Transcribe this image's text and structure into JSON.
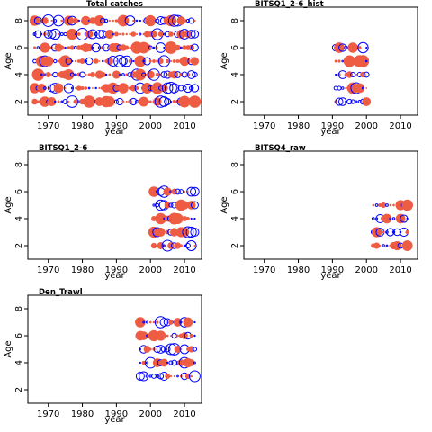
{
  "colors": {
    "positive": "#ee5c44",
    "negative": "#0000ff",
    "frame": "#000000"
  },
  "chart_data": [
    {
      "type": "scatter",
      "title": "Total catches",
      "xlabel": "year",
      "ylabel": "Age",
      "xlim": [
        1964,
        2015
      ],
      "ylim": [
        1,
        9
      ],
      "xticks": [
        1970,
        1980,
        1990,
        2000,
        2010
      ],
      "yticks": [
        2,
        4,
        6,
        8
      ],
      "years": [
        1966,
        2013
      ],
      "ages": [
        2,
        3,
        4,
        5,
        6,
        7,
        8
      ],
      "encoding": "bubble size = residual magnitude; filled red = positive, open blue = negative"
    },
    {
      "type": "scatter",
      "title": "BITSQ1_2-6_hist",
      "xlabel": "year",
      "ylabel": "Age",
      "xlim": [
        1964,
        2015
      ],
      "ylim": [
        1,
        9
      ],
      "xticks": [
        1970,
        1980,
        1990,
        2000,
        2010
      ],
      "yticks": [
        2,
        4,
        6,
        8
      ],
      "years": [
        1991,
        2000
      ],
      "ages": [
        2,
        3,
        4,
        5,
        6
      ]
    },
    {
      "type": "scatter",
      "title": "BITSQ1_2-6",
      "xlabel": "year",
      "ylabel": "Age",
      "xlim": [
        1964,
        2015
      ],
      "ylim": [
        1,
        9
      ],
      "xticks": [
        1970,
        1980,
        1990,
        2000,
        2010
      ],
      "yticks": [
        2,
        4,
        6,
        8
      ],
      "years": [
        2001,
        2013
      ],
      "ages": [
        2,
        3,
        4,
        5,
        6
      ]
    },
    {
      "type": "scatter",
      "title": "BITSQ4_raw",
      "xlabel": "year",
      "ylabel": "Age",
      "xlim": [
        1964,
        2015
      ],
      "ylim": [
        1,
        9
      ],
      "xticks": [
        1970,
        1980,
        1990,
        2000,
        2010
      ],
      "yticks": [
        2,
        4,
        6,
        8
      ],
      "years": [
        2002,
        2012
      ],
      "ages": [
        2,
        3,
        4,
        5
      ]
    },
    {
      "type": "scatter",
      "title": "Den_Trawl",
      "xlabel": "year",
      "ylabel": "Age",
      "xlim": [
        1964,
        2015
      ],
      "ylim": [
        1,
        9
      ],
      "xticks": [
        1970,
        1980,
        1990,
        2000,
        2010
      ],
      "yticks": [
        2,
        4,
        6,
        8
      ],
      "years": [
        1997,
        2013
      ],
      "ages": [
        3,
        4,
        5,
        6,
        7
      ]
    }
  ]
}
